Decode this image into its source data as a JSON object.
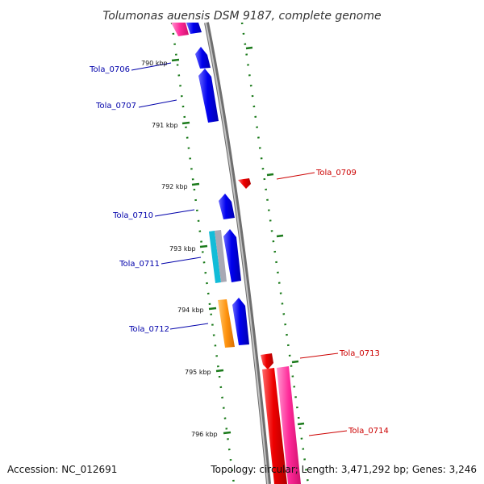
{
  "title": "Tolumonas auensis DSM 9187, complete genome",
  "footer": {
    "accession": "Accession: NC_012691",
    "topology": "Topology: circular; Length: 3,471,292 bp; Genes: 3,246"
  },
  "colors": {
    "forward_label": "#0000aa",
    "reverse_label": "#cc0000",
    "backbone": "#8a8a8a",
    "tick": "#1a7a1a"
  },
  "kbp_labels": [
    "790 kbp",
    "791 kbp",
    "792 kbp",
    "793 kbp",
    "794 kbp",
    "795 kbp",
    "796 kbp"
  ],
  "gene_labels": {
    "left": [
      "Tola_0706",
      "Tola_0707",
      "Tola_0710",
      "Tola_0711",
      "Tola_0712"
    ],
    "right": [
      "Tola_0709",
      "Tola_0713",
      "Tola_0714"
    ]
  }
}
